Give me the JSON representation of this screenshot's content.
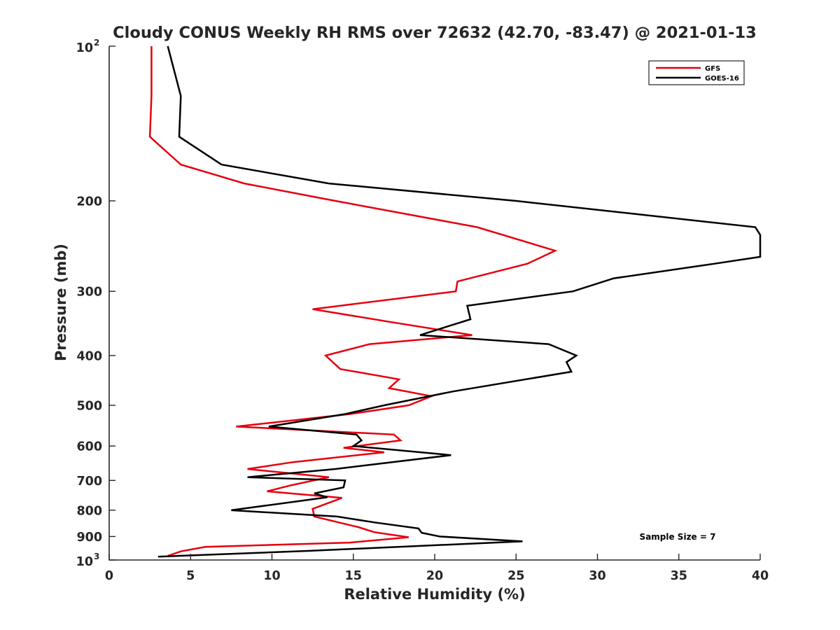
{
  "chart_data": {
    "type": "line",
    "title": "Cloudy CONUS Weekly RH RMS over 72632 (42.70, -83.47) @ 2021-01-13",
    "xlabel": "Relative Humidity (%)",
    "ylabel": "Pressure (mb)",
    "xlim": [
      0,
      40
    ],
    "ylim": [
      100,
      1000
    ],
    "y_scale": "log",
    "y_reversed": true,
    "x_ticks": [
      "0",
      "5",
      "10",
      "15",
      "20",
      "25",
      "30",
      "35",
      "40"
    ],
    "y_ticks": [
      {
        "value": 100,
        "base": "10",
        "exp": "2"
      },
      {
        "value": 200,
        "label": "200"
      },
      {
        "value": 300,
        "label": "300"
      },
      {
        "value": 400,
        "label": "400"
      },
      {
        "value": 500,
        "label": "500"
      },
      {
        "value": 600,
        "label": "600"
      },
      {
        "value": 700,
        "label": "700"
      },
      {
        "value": 800,
        "label": "800"
      },
      {
        "value": 900,
        "label": "900"
      },
      {
        "value": 1000,
        "base": "10",
        "exp": "3"
      }
    ],
    "grid": false,
    "legend_position": "top-right",
    "annotation": "Sample Size = 7",
    "series": [
      {
        "name": "GFS",
        "color": "#e6000f",
        "points": [
          [
            2.6,
            100
          ],
          [
            2.6,
            125
          ],
          [
            2.5,
            150
          ],
          [
            4.4,
            170
          ],
          [
            8.3,
            185
          ],
          [
            13.9,
            200
          ],
          [
            22.6,
            225
          ],
          [
            27.4,
            250
          ],
          [
            25.7,
            265
          ],
          [
            21.4,
            287
          ],
          [
            21.3,
            300
          ],
          [
            12.5,
            325
          ],
          [
            17.5,
            345
          ],
          [
            22.3,
            365
          ],
          [
            16.0,
            380
          ],
          [
            13.3,
            400
          ],
          [
            14.2,
            425
          ],
          [
            17.8,
            445
          ],
          [
            17.2,
            463
          ],
          [
            19.8,
            480
          ],
          [
            18.4,
            500
          ],
          [
            14.8,
            520
          ],
          [
            7.8,
            550
          ],
          [
            17.5,
            570
          ],
          [
            17.9,
            585
          ],
          [
            14.4,
            605
          ],
          [
            16.9,
            617
          ],
          [
            11.3,
            645
          ],
          [
            8.5,
            665
          ],
          [
            13.5,
            690
          ],
          [
            11.2,
            715
          ],
          [
            9.7,
            735
          ],
          [
            14.3,
            757
          ],
          [
            12.5,
            795
          ],
          [
            12.6,
            823
          ],
          [
            14.1,
            845
          ],
          [
            15.3,
            863
          ],
          [
            16.3,
            883
          ],
          [
            18.4,
            903
          ],
          [
            14.8,
            925
          ],
          [
            5.9,
            943
          ],
          [
            4.4,
            962
          ],
          [
            3.6,
            982
          ]
        ]
      },
      {
        "name": "GOES-16",
        "color": "#000000",
        "points": [
          [
            3.6,
            100
          ],
          [
            4.4,
            125
          ],
          [
            4.3,
            150
          ],
          [
            6.9,
            170
          ],
          [
            13.5,
            185
          ],
          [
            25.0,
            200
          ],
          [
            39.7,
            225
          ],
          [
            40.0,
            233
          ],
          [
            40.0,
            257
          ],
          [
            37.2,
            265
          ],
          [
            31.0,
            283
          ],
          [
            28.5,
            300
          ],
          [
            22.0,
            320
          ],
          [
            22.2,
            340
          ],
          [
            19.1,
            365
          ],
          [
            27.0,
            380
          ],
          [
            28.7,
            400
          ],
          [
            28.1,
            412
          ],
          [
            28.4,
            430
          ],
          [
            21.1,
            470
          ],
          [
            16.9,
            500
          ],
          [
            14.5,
            520
          ],
          [
            9.8,
            550
          ],
          [
            15.2,
            570
          ],
          [
            15.5,
            585
          ],
          [
            15.0,
            600
          ],
          [
            21.0,
            625
          ],
          [
            13.9,
            665
          ],
          [
            8.5,
            690
          ],
          [
            14.5,
            700
          ],
          [
            14.4,
            722
          ],
          [
            12.6,
            742
          ],
          [
            13.4,
            755
          ],
          [
            7.5,
            800
          ],
          [
            14.0,
            823
          ],
          [
            16.3,
            845
          ],
          [
            19.0,
            868
          ],
          [
            19.2,
            885
          ],
          [
            20.3,
            900
          ],
          [
            25.4,
            920
          ],
          [
            12.2,
            960
          ],
          [
            3.0,
            985
          ]
        ]
      }
    ]
  }
}
